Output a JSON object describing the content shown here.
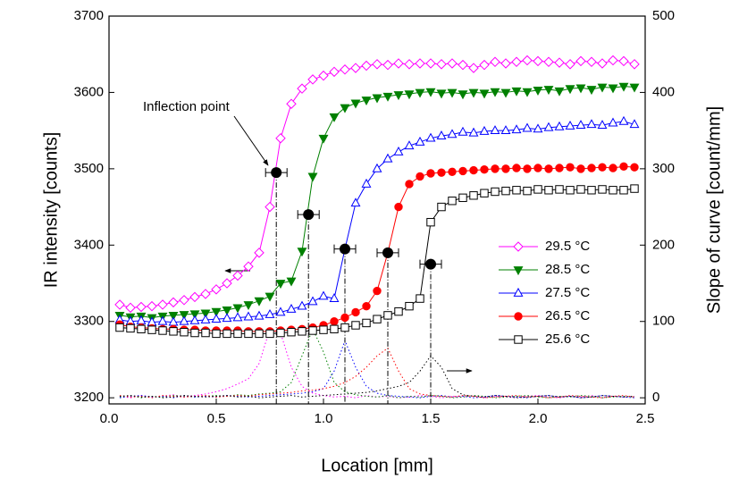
{
  "chart_data": {
    "type": "line",
    "xlabel": "Location [mm]",
    "ylabel": "IR intensity [counts]",
    "y2label": "Slope of curve [count/mm]",
    "xlim": [
      0,
      2.5
    ],
    "xticks": [
      {
        "value": 0,
        "label": "0.0"
      },
      0.5,
      {
        "value": 1,
        "label": "1.0"
      },
      1.5,
      {
        "value": 2,
        "label": "2.0"
      },
      2.5
    ],
    "ylim": [
      3192,
      3700
    ],
    "yticks": [
      3200,
      3300,
      3400,
      3500,
      3600,
      3700
    ],
    "y2lim": [
      -8,
      500
    ],
    "y2ticks": [
      0,
      100,
      200,
      300,
      400,
      500
    ],
    "legend": "lower right",
    "x": [
      0.05,
      0.1,
      0.15,
      0.2,
      0.25,
      0.3,
      0.35,
      0.4,
      0.45,
      0.5,
      0.55,
      0.6,
      0.65,
      0.7,
      0.75,
      0.8,
      0.85,
      0.9,
      0.95,
      1.0,
      1.05,
      1.1,
      1.15,
      1.2,
      1.25,
      1.3,
      1.35,
      1.4,
      1.45,
      1.5,
      1.55,
      1.6,
      1.65,
      1.7,
      1.75,
      1.8,
      1.85,
      1.9,
      1.95,
      2.0,
      2.05,
      2.1,
      2.15,
      2.2,
      2.25,
      2.3,
      2.35,
      2.4,
      2.45
    ],
    "series": [
      {
        "name": "29.5 °C",
        "color": "#ff00ff",
        "marker": "diamond",
        "filled": false,
        "values": [
          3322,
          3318,
          3319,
          3320,
          3322,
          3325,
          3328,
          3332,
          3336,
          3342,
          3350,
          3360,
          3372,
          3390,
          3450,
          3540,
          3585,
          3605,
          3617,
          3622,
          3627,
          3630,
          3632,
          3635,
          3637,
          3636,
          3638,
          3637,
          3638,
          3638,
          3637,
          3638,
          3636,
          3632,
          3636,
          3640,
          3638,
          3640,
          3642,
          3641,
          3640,
          3639,
          3637,
          3641,
          3640,
          3638,
          3642,
          3641,
          3637
        ]
      },
      {
        "name": "28.5 °C",
        "color": "#008000",
        "marker": "triangle-down",
        "filled": true,
        "values": [
          3308,
          3306,
          3307,
          3305,
          3307,
          3308,
          3309,
          3310,
          3311,
          3313,
          3315,
          3318,
          3322,
          3327,
          3333,
          3350,
          3353,
          3392,
          3490,
          3540,
          3568,
          3580,
          3586,
          3590,
          3593,
          3595,
          3597,
          3598,
          3600,
          3601,
          3599,
          3600,
          3598,
          3600,
          3599,
          3601,
          3600,
          3602,
          3601,
          3603,
          3604,
          3602,
          3605,
          3606,
          3604,
          3607,
          3606,
          3608,
          3607
        ]
      },
      {
        "name": "27.5 °C",
        "color": "#0000ff",
        "marker": "triangle",
        "filled": false,
        "values": [
          3302,
          3300,
          3301,
          3299,
          3300,
          3299,
          3300,
          3301,
          3302,
          3303,
          3304,
          3305,
          3306,
          3307,
          3309,
          3312,
          3316,
          3320,
          3326,
          3333,
          3330,
          3395,
          3455,
          3480,
          3500,
          3513,
          3522,
          3530,
          3535,
          3540,
          3543,
          3545,
          3548,
          3547,
          3549,
          3550,
          3550,
          3551,
          3553,
          3552,
          3554,
          3555,
          3556,
          3557,
          3558,
          3557,
          3560,
          3562,
          3558
        ]
      },
      {
        "name": "26.5 °C",
        "color": "#ff0000",
        "marker": "circle",
        "filled": true,
        "values": [
          3296,
          3293,
          3292,
          3291,
          3290,
          3290,
          3289,
          3289,
          3288,
          3288,
          3288,
          3288,
          3287,
          3287,
          3287,
          3288,
          3289,
          3290,
          3292,
          3295,
          3300,
          3305,
          3312,
          3320,
          3340,
          3390,
          3450,
          3480,
          3490,
          3494,
          3495,
          3496,
          3497,
          3498,
          3499,
          3500,
          3500,
          3501,
          3500,
          3501,
          3500,
          3501,
          3502,
          3500,
          3501,
          3502,
          3501,
          3503,
          3502
        ]
      },
      {
        "name": "25.6 °C",
        "color": "#000000",
        "marker": "square",
        "filled": false,
        "values": [
          3292,
          3291,
          3290,
          3289,
          3288,
          3287,
          3286,
          3285,
          3285,
          3284,
          3284,
          3284,
          3284,
          3284,
          3284,
          3285,
          3286,
          3287,
          3288,
          3289,
          3290,
          3292,
          3295,
          3298,
          3303,
          3308,
          3313,
          3320,
          3330,
          3430,
          3450,
          3458,
          3462,
          3465,
          3468,
          3470,
          3471,
          3472,
          3471,
          3473,
          3472,
          3473,
          3472,
          3473,
          3472,
          3473,
          3472,
          3472,
          3474
        ]
      }
    ],
    "slope_series": [
      {
        "color": "#ff00ff",
        "axis": "y2",
        "values": [
          2,
          0,
          3,
          1,
          2,
          4,
          1,
          3,
          5,
          8,
          12,
          18,
          25,
          45,
          90,
          85,
          40,
          15,
          6,
          3,
          1,
          2,
          0,
          3,
          1,
          2,
          0,
          1,
          3,
          2,
          0,
          2,
          1,
          3,
          0,
          2,
          1,
          0,
          2,
          3,
          1,
          0,
          2,
          1,
          3,
          0,
          2,
          1,
          2
        ]
      },
      {
        "color": "#008000",
        "axis": "y2",
        "values": [
          1,
          3,
          0,
          2,
          1,
          3,
          2,
          1,
          2,
          3,
          2,
          4,
          3,
          5,
          6,
          8,
          20,
          55,
          90,
          60,
          20,
          8,
          4,
          2,
          1,
          3,
          0,
          2,
          1,
          3,
          2,
          0,
          1,
          3,
          2,
          0,
          1,
          2,
          3,
          1,
          0,
          2,
          1,
          3,
          2,
          0,
          1,
          2,
          1
        ]
      },
      {
        "color": "#0000ff",
        "axis": "y2",
        "values": [
          0,
          2,
          3,
          1,
          2,
          0,
          3,
          1,
          2,
          1,
          3,
          2,
          1,
          2,
          3,
          4,
          5,
          6,
          8,
          12,
          35,
          75,
          40,
          15,
          6,
          3,
          2,
          1,
          0,
          2,
          3,
          1,
          2,
          0,
          1,
          3,
          2,
          1,
          0,
          2,
          3,
          1,
          2,
          0,
          1,
          3,
          2,
          1,
          0
        ]
      },
      {
        "color": "#ff0000",
        "axis": "y2",
        "values": [
          3,
          1,
          2,
          0,
          3,
          2,
          1,
          2,
          3,
          1,
          2,
          3,
          2,
          4,
          5,
          6,
          7,
          9,
          10,
          12,
          15,
          20,
          28,
          40,
          55,
          65,
          35,
          12,
          5,
          3,
          2,
          1,
          3,
          2,
          0,
          1,
          2,
          3,
          1,
          2,
          0,
          1,
          3,
          2,
          1,
          0,
          2,
          3,
          1
        ]
      },
      {
        "color": "#000000",
        "axis": "y2",
        "values": [
          2,
          3,
          1,
          2,
          0,
          1,
          3,
          2,
          1,
          2,
          3,
          1,
          2,
          0,
          1,
          2,
          3,
          1,
          2,
          3,
          4,
          5,
          6,
          7,
          9,
          12,
          15,
          20,
          35,
          55,
          40,
          12,
          4,
          2,
          1,
          3,
          2,
          0,
          1,
          2,
          3,
          1,
          2,
          0,
          1,
          3,
          2,
          1,
          2
        ]
      }
    ],
    "inflection_points": {
      "color": "#000000",
      "x": [
        0.78,
        0.93,
        1.1,
        1.3,
        1.5
      ],
      "values": [
        3495,
        3440,
        3395,
        3390,
        3375
      ],
      "xerr": [
        0.05,
        0.05,
        0.05,
        0.05,
        0.05
      ]
    },
    "annotation": "Inflection point"
  }
}
